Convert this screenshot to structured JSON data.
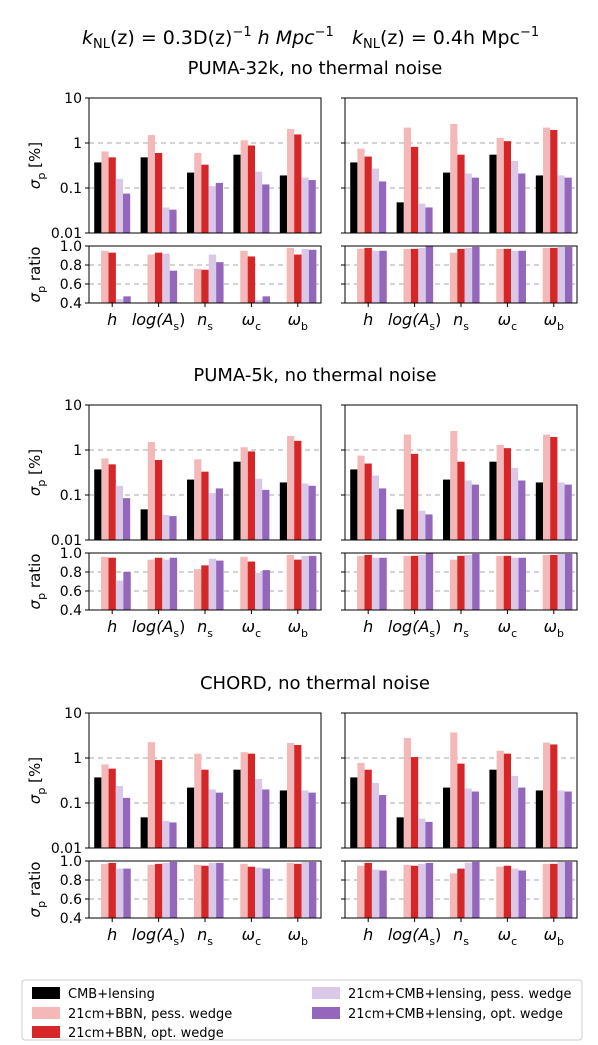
{
  "header": {
    "left_kappa_label": "k",
    "left_kappa_sub": "NL",
    "left_rest": "(z) = 0.3D(z)",
    "left_exp": "−1",
    "left_unit": " h Mpc",
    "left_unit_exp": "−1",
    "right_kappa_label": "k",
    "right_kappa_sub": "NL",
    "right_rest": "(z) = 0.4h Mpc",
    "right_unit_exp": "−1"
  },
  "legend": {
    "entries": [
      {
        "label": "CMB+lensing",
        "color": "#000000"
      },
      {
        "label": "21cm+BBN, pess. wedge",
        "color": "#f4b8b8"
      },
      {
        "label": "21cm+BBN, opt. wedge",
        "color": "#d62728"
      },
      {
        "label": "21cm+CMB+lensing, pess. wedge",
        "color": "#d9c8e8"
      },
      {
        "label": "21cm+CMB+lensing, opt. wedge",
        "color": "#9467bd"
      }
    ]
  },
  "chart_data": {
    "type": "bar",
    "parameters": [
      "h",
      "log(A_s)",
      "n_s",
      "ω_c",
      "ω_b"
    ],
    "parameter_display": [
      {
        "main": "h",
        "sub": ""
      },
      {
        "main": "log(A",
        "sub": "s",
        "tail": ")"
      },
      {
        "main": "n",
        "sub": "s"
      },
      {
        "main": "ω",
        "sub": "c"
      },
      {
        "main": "ω",
        "sub": "b"
      }
    ],
    "sigma_axis": {
      "label_main": "σ",
      "label_sub": "p",
      "label_tail": " [%]",
      "scale": "log",
      "ylim": [
        0.01,
        10
      ],
      "ticks": [
        0.01,
        0.1,
        1,
        10
      ],
      "tick_labels": [
        "0.01",
        "0.1",
        "1",
        "10"
      ]
    },
    "ratio_axis": {
      "label_main": "σ",
      "label_sub": "p",
      "label_tail": " ratio",
      "ylim": [
        0.4,
        1.0
      ],
      "ticks": [
        0.4,
        0.6,
        0.8,
        1.0
      ],
      "tick_labels": [
        "0.4",
        "0.6",
        "0.8",
        "1.0"
      ]
    },
    "gridlines": {
      "sigma": [
        0.1,
        1
      ],
      "ratio": [
        0.6,
        0.8,
        1.0
      ]
    },
    "series_colors": [
      "#000000",
      "#f4b8b8",
      "#d62728",
      "#d9c8e8",
      "#9467bd"
    ],
    "ratio_series_colors": [
      "#f4b8b8",
      "#d62728",
      "#d9c8e8",
      "#9467bd"
    ],
    "experiments": [
      {
        "title": "PUMA-32k, no thermal noise",
        "panels": [
          {
            "sigma": [
              [
                0.37,
                0.48,
                0.22,
                0.55,
                0.19
              ],
              [
                0.65,
                1.5,
                0.6,
                1.15,
                2.05
              ],
              [
                0.48,
                0.6,
                0.33,
                0.88,
                1.55
              ],
              [
                0.16,
                0.037,
                0.11,
                0.23,
                0.17
              ],
              [
                0.075,
                0.033,
                0.13,
                0.12,
                0.15
              ]
            ],
            "ratio": [
              [
                0.95,
                0.91,
                0.76,
                0.95,
                0.98
              ],
              [
                0.93,
                0.93,
                0.75,
                0.89,
                0.91
              ],
              [
                0.44,
                0.92,
                0.91,
                0.43,
                0.97
              ],
              [
                0.47,
                0.74,
                0.83,
                0.47,
                0.96
              ]
            ]
          },
          {
            "sigma": [
              [
                0.37,
                0.048,
                0.22,
                0.55,
                0.19
              ],
              [
                0.75,
                2.2,
                2.65,
                1.3,
                2.2
              ],
              [
                0.5,
                0.82,
                0.55,
                1.1,
                1.95
              ],
              [
                0.27,
                0.045,
                0.21,
                0.4,
                0.19
              ],
              [
                0.14,
                0.037,
                0.17,
                0.21,
                0.17
              ]
            ],
            "ratio": [
              [
                0.97,
                0.97,
                0.93,
                0.97,
                0.98
              ],
              [
                0.98,
                0.97,
                0.97,
                0.97,
                0.98
              ],
              [
                0.95,
                0.98,
                0.98,
                0.95,
                0.99
              ],
              [
                0.95,
                1.0,
                0.99,
                0.95,
                0.99
              ]
            ]
          }
        ]
      },
      {
        "title": "PUMA-5k, no thermal noise",
        "panels": [
          {
            "sigma": [
              [
                0.37,
                0.048,
                0.22,
                0.55,
                0.19
              ],
              [
                0.65,
                1.5,
                0.62,
                1.15,
                2.05
              ],
              [
                0.48,
                0.6,
                0.33,
                0.93,
                1.6
              ],
              [
                0.16,
                0.036,
                0.11,
                0.23,
                0.18
              ],
              [
                0.085,
                0.034,
                0.14,
                0.13,
                0.16
              ]
            ],
            "ratio": [
              [
                0.96,
                0.93,
                0.83,
                0.96,
                0.98
              ],
              [
                0.95,
                0.95,
                0.87,
                0.91,
                0.93
              ],
              [
                0.71,
                0.93,
                0.94,
                0.79,
                0.97
              ],
              [
                0.8,
                0.95,
                0.92,
                0.82,
                0.97
              ]
            ]
          },
          {
            "sigma": [
              [
                0.37,
                0.048,
                0.22,
                0.55,
                0.19
              ],
              [
                0.75,
                2.2,
                2.65,
                1.3,
                2.2
              ],
              [
                0.5,
                0.82,
                0.55,
                1.1,
                1.95
              ],
              [
                0.27,
                0.045,
                0.21,
                0.4,
                0.19
              ],
              [
                0.14,
                0.037,
                0.17,
                0.21,
                0.17
              ]
            ],
            "ratio": [
              [
                0.97,
                0.97,
                0.93,
                0.97,
                0.98
              ],
              [
                0.98,
                0.97,
                0.97,
                0.97,
                0.98
              ],
              [
                0.95,
                0.98,
                0.98,
                0.95,
                0.99
              ],
              [
                0.95,
                1.0,
                0.99,
                0.95,
                0.99
              ]
            ]
          }
        ]
      },
      {
        "title": "CHORD, no thermal noise",
        "panels": [
          {
            "sigma": [
              [
                0.37,
                0.048,
                0.22,
                0.55,
                0.19
              ],
              [
                0.72,
                2.25,
                1.25,
                1.35,
                2.15
              ],
              [
                0.58,
                0.9,
                0.55,
                1.25,
                1.95
              ],
              [
                0.24,
                0.04,
                0.2,
                0.34,
                0.19
              ],
              [
                0.13,
                0.037,
                0.17,
                0.2,
                0.17
              ]
            ],
            "ratio": [
              [
                0.97,
                0.96,
                0.96,
                0.97,
                0.98
              ],
              [
                0.98,
                0.97,
                0.95,
                0.94,
                0.97
              ],
              [
                0.92,
                0.98,
                0.98,
                0.93,
                0.99
              ],
              [
                0.92,
                0.99,
                0.98,
                0.92,
                0.99
              ]
            ]
          },
          {
            "sigma": [
              [
                0.37,
                0.048,
                0.22,
                0.55,
                0.19
              ],
              [
                0.78,
                2.8,
                3.7,
                1.45,
                2.2
              ],
              [
                0.55,
                1.05,
                0.75,
                1.25,
                2.0
              ],
              [
                0.28,
                0.045,
                0.21,
                0.4,
                0.19
              ],
              [
                0.15,
                0.038,
                0.18,
                0.22,
                0.18
              ]
            ],
            "ratio": [
              [
                0.95,
                0.96,
                0.87,
                0.94,
                0.97
              ],
              [
                0.98,
                0.95,
                0.92,
                0.95,
                0.97
              ],
              [
                0.91,
                0.97,
                0.98,
                0.92,
                0.99
              ],
              [
                0.9,
                0.98,
                0.99,
                0.9,
                0.99
              ]
            ]
          }
        ]
      }
    ]
  }
}
